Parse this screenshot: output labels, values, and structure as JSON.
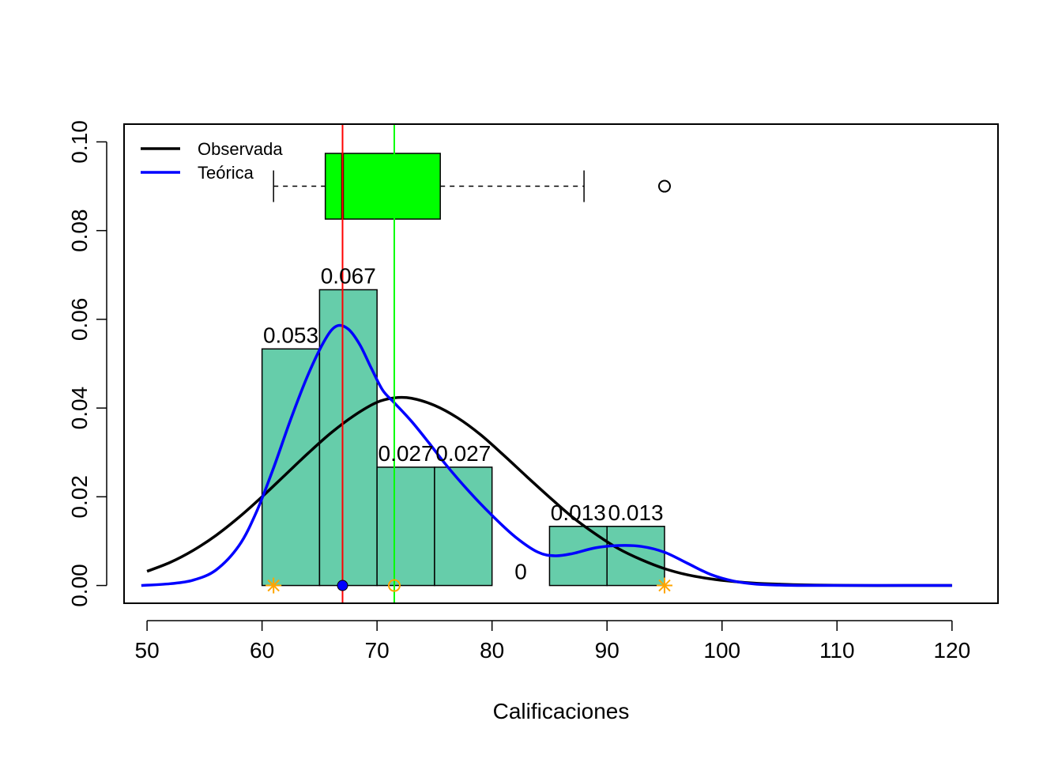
{
  "chart_data": {
    "type": "bar",
    "title": "",
    "xlabel": "Calificaciones",
    "ylabel": "",
    "xlim": [
      48,
      124
    ],
    "ylim": [
      -0.004,
      0.104
    ],
    "x_ticks": [
      50,
      60,
      70,
      80,
      90,
      100,
      110,
      120
    ],
    "x_tick_labels": [
      "50",
      "60",
      "70",
      "80",
      "90",
      "100",
      "110",
      "120"
    ],
    "y_ticks": [
      0,
      0.02,
      0.04,
      0.06,
      0.08,
      0.1
    ],
    "y_tick_labels": [
      "0.00",
      "0.02",
      "0.04",
      "0.06",
      "0.08",
      "0.10"
    ],
    "histogram": {
      "fill_color": "#66CDAA",
      "bins": [
        {
          "x0": 60,
          "x1": 65,
          "density": 0.05333,
          "label": "0.053"
        },
        {
          "x0": 65,
          "x1": 70,
          "density": 0.06667,
          "label": "0.067"
        },
        {
          "x0": 70,
          "x1": 75,
          "density": 0.02667,
          "label": "0.027"
        },
        {
          "x0": 75,
          "x1": 80,
          "density": 0.02667,
          "label": "0.027"
        },
        {
          "x0": 80,
          "x1": 85,
          "density": 0,
          "label": "0"
        },
        {
          "x0": 85,
          "x1": 90,
          "density": 0.01333,
          "label": "0.013"
        },
        {
          "x0": 90,
          "x1": 95,
          "density": 0.01333,
          "label": "0.013"
        }
      ]
    },
    "series": [
      {
        "name": "Observada",
        "color": "#000000",
        "kind": "normal-curve",
        "points": [
          [
            50,
            0.0032
          ],
          [
            52,
            0.0052
          ],
          [
            54,
            0.0079
          ],
          [
            56,
            0.0113
          ],
          [
            58,
            0.0154
          ],
          [
            60,
            0.02
          ],
          [
            62,
            0.0249
          ],
          [
            64,
            0.0298
          ],
          [
            66,
            0.0344
          ],
          [
            68,
            0.0383
          ],
          [
            70,
            0.0413
          ],
          [
            71.5,
            0.0423
          ],
          [
            73,
            0.0422
          ],
          [
            75,
            0.0406
          ],
          [
            77,
            0.0378
          ],
          [
            79,
            0.034
          ],
          [
            81,
            0.0294
          ],
          [
            83,
            0.0246
          ],
          [
            85,
            0.0199
          ],
          [
            87,
            0.0154
          ],
          [
            89,
            0.0116
          ],
          [
            91,
            0.0083
          ],
          [
            93,
            0.0058
          ],
          [
            95,
            0.0038
          ],
          [
            97,
            0.0024
          ],
          [
            99,
            0.0015
          ],
          [
            101,
            0.0009
          ],
          [
            103,
            0.0005
          ],
          [
            105,
            0.0003
          ],
          [
            108,
            0.0001
          ],
          [
            112,
            0.0
          ],
          [
            116,
            0.0
          ],
          [
            120,
            0.0
          ]
        ]
      },
      {
        "name": "Teórica",
        "color": "#0000FF",
        "kind": "density",
        "points": [
          [
            49.5,
            0.0
          ],
          [
            52,
            0.0004
          ],
          [
            54,
            0.0012
          ],
          [
            56,
            0.0035
          ],
          [
            58,
            0.009
          ],
          [
            59.5,
            0.0165
          ],
          [
            61,
            0.0265
          ],
          [
            62.5,
            0.0375
          ],
          [
            64,
            0.0475
          ],
          [
            65.5,
            0.0555
          ],
          [
            66.5,
            0.0585
          ],
          [
            67.5,
            0.0578
          ],
          [
            68.5,
            0.0543
          ],
          [
            69.5,
            0.049
          ],
          [
            70.5,
            0.044
          ],
          [
            71.5,
            0.0412
          ],
          [
            73,
            0.037
          ],
          [
            74.5,
            0.0322
          ],
          [
            76,
            0.0272
          ],
          [
            78,
            0.0212
          ],
          [
            80,
            0.0158
          ],
          [
            82,
            0.011
          ],
          [
            84,
            0.0075
          ],
          [
            85.5,
            0.0067
          ],
          [
            87,
            0.0072
          ],
          [
            89,
            0.0085
          ],
          [
            91,
            0.009
          ],
          [
            93,
            0.0088
          ],
          [
            95,
            0.0075
          ],
          [
            97,
            0.005
          ],
          [
            99,
            0.0025
          ],
          [
            101,
            0.001
          ],
          [
            103,
            0.0003
          ],
          [
            105,
            0.0001
          ],
          [
            107,
            0.0
          ],
          [
            110,
            0.0
          ],
          [
            115,
            0.0
          ],
          [
            120,
            0.0
          ]
        ]
      }
    ],
    "boxplot": {
      "y": 0.09,
      "box_height": 0.0148,
      "whisker_low": 61,
      "q1": 65.5,
      "median": 67,
      "q3": 75.5,
      "whisker_high": 88,
      "outliers": [
        95
      ],
      "fill_color": "#00FF00"
    },
    "reference_lines": [
      {
        "x": 67,
        "color": "#FF0000"
      },
      {
        "x": 71.5,
        "color": "#00FF00"
      }
    ],
    "markers": [
      {
        "x": 61,
        "y": 0,
        "shape": "asterisk",
        "color": "#FFA500"
      },
      {
        "x": 95,
        "y": 0,
        "shape": "asterisk",
        "color": "#FFA500"
      },
      {
        "x": 67,
        "y": 0,
        "shape": "filled-circle",
        "color": "#0000FF"
      },
      {
        "x": 71.5,
        "y": 0,
        "shape": "open-circle",
        "color": "#FFA500"
      }
    ],
    "legend": {
      "position": "top-left",
      "entries": [
        {
          "label": "Observada",
          "color": "#000000"
        },
        {
          "label": "Teórica",
          "color": "#0000FF"
        }
      ]
    }
  }
}
